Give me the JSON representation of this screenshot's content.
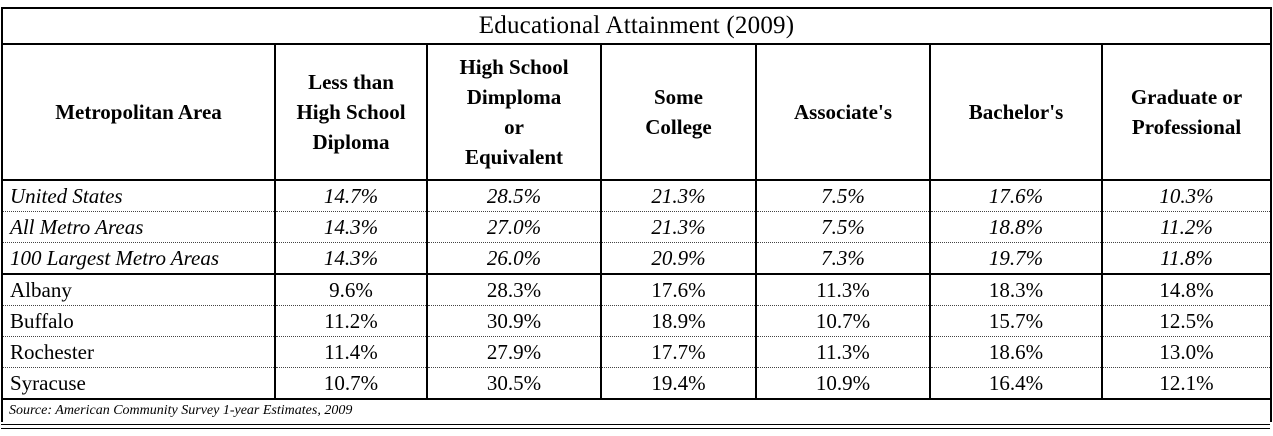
{
  "title": "Educational Attainment (2009)",
  "columns": [
    "Metropolitan Area",
    "Less than\nHigh School\nDiploma",
    "High School\nDimploma\nor\nEquivalent",
    "Some\nCollege",
    "Associate's",
    "Bachelor's",
    "Graduate or\nProfessional"
  ],
  "benchmark_rows": [
    {
      "area": "United States",
      "values": [
        "14.7%",
        "28.5%",
        "21.3%",
        "7.5%",
        "17.6%",
        "10.3%"
      ]
    },
    {
      "area": "All Metro Areas",
      "values": [
        "14.3%",
        "27.0%",
        "21.3%",
        "7.5%",
        "18.8%",
        "11.2%"
      ]
    },
    {
      "area": "100 Largest Metro Areas",
      "values": [
        "14.3%",
        "26.0%",
        "20.9%",
        "7.3%",
        "19.7%",
        "11.8%"
      ]
    }
  ],
  "metro_rows": [
    {
      "area": "Albany",
      "values": [
        "9.6%",
        "28.3%",
        "17.6%",
        "11.3%",
        "18.3%",
        "14.8%"
      ]
    },
    {
      "area": "Buffalo",
      "values": [
        "11.2%",
        "30.9%",
        "18.9%",
        "10.7%",
        "15.7%",
        "12.5%"
      ]
    },
    {
      "area": "Rochester",
      "values": [
        "11.4%",
        "27.9%",
        "17.7%",
        "11.3%",
        "18.6%",
        "13.0%"
      ]
    },
    {
      "area": "Syracuse",
      "values": [
        "10.7%",
        "30.5%",
        "19.4%",
        "10.9%",
        "16.4%",
        "12.1%"
      ]
    }
  ],
  "source": "Source: American Community Survey 1-year Estimates, 2009"
}
